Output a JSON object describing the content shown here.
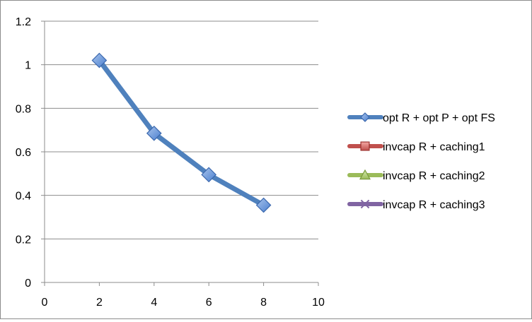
{
  "chart_data": {
    "type": "line",
    "title": "",
    "xlabel": "",
    "ylabel": "",
    "xlim": [
      0,
      10
    ],
    "ylim": [
      0,
      1.2
    ],
    "x_ticks": [
      0,
      2,
      4,
      6,
      8,
      10
    ],
    "y_ticks": [
      0,
      0.2,
      0.4,
      0.6,
      0.8,
      1,
      1.2
    ],
    "x_tick_labels": [
      "0",
      "2",
      "4",
      "6",
      "8",
      "10"
    ],
    "y_tick_labels": [
      "0",
      "0.2",
      "0.4",
      "0.6",
      "0.8",
      "1",
      "1.2"
    ],
    "grid": "horizontal",
    "legend_position": "right",
    "series": [
      {
        "name": "opt R + opt P + opt FS",
        "color": "#4f81bd",
        "marker": "diamond",
        "x": [
          2,
          4,
          6,
          8
        ],
        "y": [
          1.02,
          0.685,
          0.495,
          0.355
        ]
      },
      {
        "name": "invcap R + caching1",
        "color": "#c0504d",
        "marker": "square",
        "x": [],
        "y": []
      },
      {
        "name": "invcap R + caching2",
        "color": "#9bbb59",
        "marker": "triangle",
        "x": [],
        "y": []
      },
      {
        "name": "invcap R + caching3",
        "color": "#8064a2",
        "marker": "x",
        "x": [],
        "y": []
      }
    ]
  }
}
